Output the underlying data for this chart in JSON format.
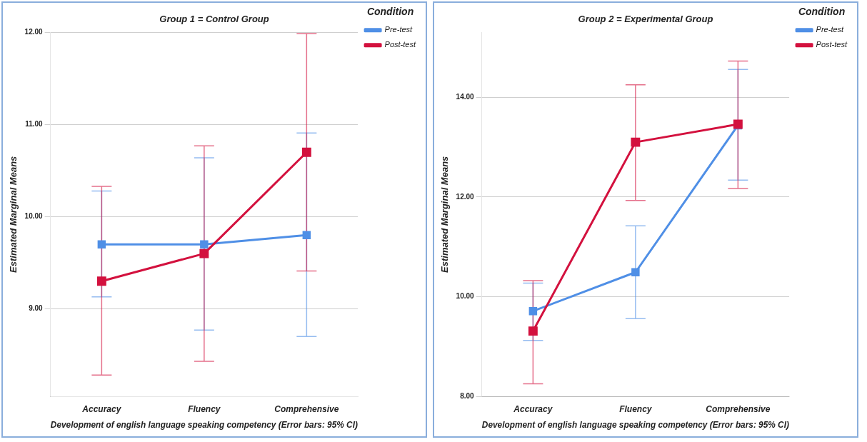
{
  "chart_data": [
    {
      "type": "line",
      "title": "Group 1 = Control Group",
      "xlabel": "Development of english language speaking competency (Error bars: 95% CI)",
      "ylabel": "Estimated Marginal Means",
      "legend_title": "Condition",
      "categories": [
        "Accuracy",
        "Fluency",
        "Comprehensive"
      ],
      "series": [
        {
          "name": "Pre-test",
          "color": "#4f8fe6",
          "values": [
            9.7,
            9.7,
            9.8
          ],
          "errors": [
            [
              9.13,
              10.28
            ],
            [
              8.77,
              10.64
            ],
            [
              8.7,
              10.91
            ]
          ]
        },
        {
          "name": "Post-test",
          "color": "#d3113e",
          "values": [
            9.3,
            9.6,
            10.7
          ],
          "errors": [
            [
              8.28,
              10.33
            ],
            [
              8.43,
              10.77
            ],
            [
              9.41,
              11.99
            ]
          ]
        }
      ],
      "ylim": [
        8.05,
        12.0
      ],
      "yticks": [
        {
          "value": 9,
          "label": "9.00"
        },
        {
          "value": 10,
          "label": "10.00"
        },
        {
          "value": 11,
          "label": "11.00"
        },
        {
          "value": 12,
          "label": "12.00"
        }
      ],
      "grid": "y",
      "legend": "top right",
      "marker": "square",
      "line_style": "solid"
    },
    {
      "type": "line",
      "title": "Group 2 = Experimental Group",
      "xlabel": "Development of english language speaking competency (Error bars: 95% CI)",
      "ylabel": "Estimated Marginal Means",
      "legend_title": "Condition",
      "categories": [
        "Accuracy",
        "Fluency",
        "Comprehensive"
      ],
      "series": [
        {
          "name": "Pre-test",
          "color": "#4f8fe6",
          "values": [
            9.71,
            10.49,
            13.44
          ],
          "errors": [
            [
              9.12,
              10.27
            ],
            [
              9.56,
              11.42
            ],
            [
              12.34,
              14.56
            ]
          ]
        },
        {
          "name": "Post-test",
          "color": "#d3113e",
          "values": [
            9.31,
            13.1,
            13.46
          ],
          "errors": [
            [
              8.25,
              10.32
            ],
            [
              11.93,
              14.25
            ],
            [
              12.17,
              14.73
            ]
          ]
        }
      ],
      "ylim": [
        8.0,
        15.3
      ],
      "yticks": [
        {
          "value": 8,
          "label": "8.00"
        },
        {
          "value": 10,
          "label": "10.00"
        },
        {
          "value": 12,
          "label": "12.00"
        },
        {
          "value": 14,
          "label": "14.00"
        }
      ],
      "grid": "y",
      "legend": "top right",
      "marker": "square",
      "line_style": "solid"
    }
  ]
}
